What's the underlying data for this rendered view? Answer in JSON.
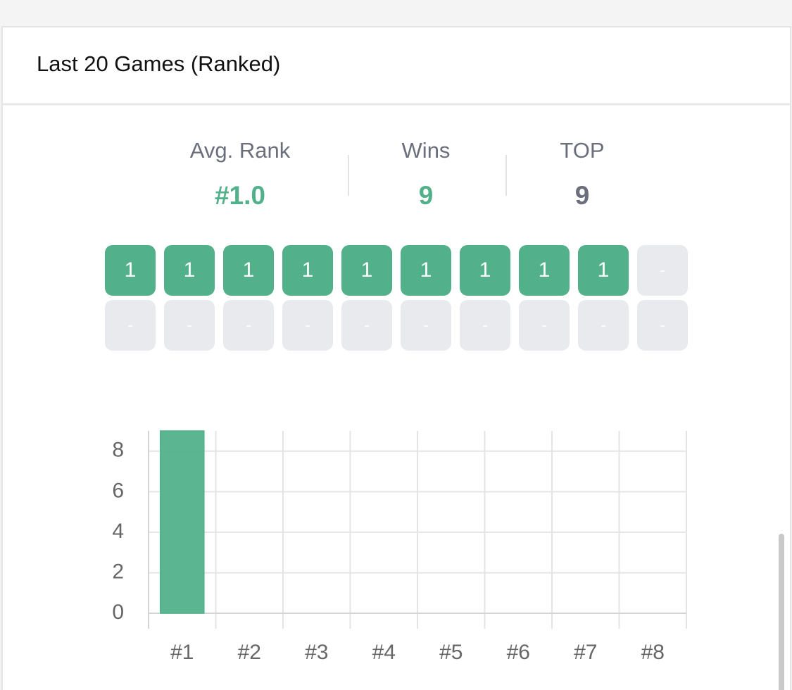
{
  "header": {
    "title": "Last 20 Games (Ranked)"
  },
  "stats": [
    {
      "label": "Avg. Rank",
      "value": "#1.0"
    },
    {
      "label": "Wins",
      "value": "9"
    },
    {
      "label": "TOP",
      "value": "9"
    }
  ],
  "recent_games": [
    "1",
    "1",
    "1",
    "1",
    "1",
    "1",
    "1",
    "1",
    "1",
    "-",
    "-",
    "-",
    "-",
    "-",
    "-",
    "-",
    "-",
    "-",
    "-",
    "-"
  ],
  "chart_data": {
    "type": "bar",
    "categories": [
      "#1",
      "#2",
      "#3",
      "#4",
      "#5",
      "#6",
      "#7",
      "#8"
    ],
    "values": [
      9,
      0,
      0,
      0,
      0,
      0,
      0,
      0
    ],
    "colors": [
      "#52b18a",
      "#6c8fb3",
      "#6c8fb3",
      "#6c8fb3",
      "#b8b8b8",
      "#b8b8b8",
      "#b8b8b8",
      "#b8b8b8"
    ],
    "ylim": [
      0,
      9
    ],
    "yticks": [
      0,
      2,
      4,
      6,
      8
    ],
    "grid": true
  }
}
